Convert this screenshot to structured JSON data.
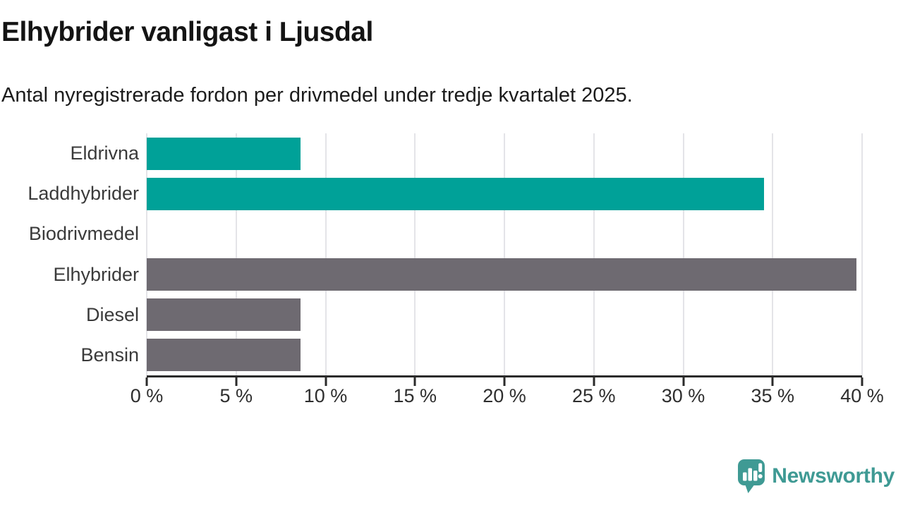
{
  "header": {
    "title": "Elhybrider vanligast i Ljusdal",
    "subtitle": "Antal nyregistrerade fordon per drivmedel under tredje kvartalet 2025."
  },
  "chart_data": {
    "type": "bar",
    "orientation": "horizontal",
    "title": "Elhybrider vanligast i Ljusdal",
    "subtitle": "Antal nyregistrerade fordon per drivmedel under tredje kvartalet 2025.",
    "categories": [
      "Eldrivna",
      "Laddhybrider",
      "Biodrivmedel",
      "Elhybrider",
      "Diesel",
      "Bensin"
    ],
    "values": [
      8.6,
      34.5,
      0,
      39.7,
      8.6,
      8.6
    ],
    "unit": "%",
    "bar_colors": [
      "#00a198",
      "#00a198",
      "#00a198",
      "#6e6a71",
      "#6e6a71",
      "#6e6a71"
    ],
    "xlim": [
      0,
      40
    ],
    "x_ticks": [
      0,
      5,
      10,
      15,
      20,
      25,
      30,
      35,
      40
    ],
    "x_tick_labels": [
      "0 %",
      "5 %",
      "10 %",
      "15 %",
      "20 %",
      "25 %",
      "30 %",
      "35 %",
      "40 %"
    ],
    "grid": "vertical-only",
    "legend": "none",
    "xlabel": "",
    "ylabel": ""
  },
  "footer": {
    "brand": "Newsworthy",
    "logo_icon": "newsworthy-speech-bubble-bars-icon",
    "brand_color": "#3f9a94"
  },
  "colors": {
    "teal_bar": "#00a198",
    "gray_bar": "#6e6a71",
    "axis": "#2b2b2b",
    "gridline": "#e4e4e8",
    "label_text": "#3a3a3a",
    "title_text": "#141414"
  }
}
